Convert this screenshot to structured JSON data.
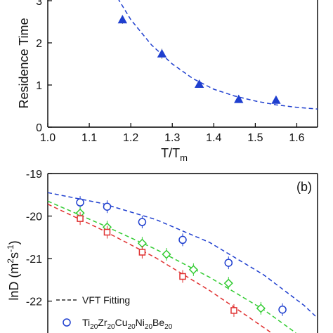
{
  "chart_data": [
    {
      "type": "scatter",
      "panel": "top",
      "ylabel": "Residence Time",
      "xlabel": "T/T",
      "xlabel_sub": "m",
      "xlim": [
        1.0,
        1.65
      ],
      "ylim": [
        0,
        3.3
      ],
      "x_ticks": [
        "1.0",
        "1.1",
        "1.2",
        "1.3",
        "1.4",
        "1.5",
        "1.6"
      ],
      "y_ticks": [
        "0",
        "1",
        "2",
        "3"
      ],
      "marker": "triangle-up",
      "color": "#1f3fcf",
      "points": [
        {
          "x": 1.18,
          "y": 2.55,
          "err": 0.1
        },
        {
          "x": 1.275,
          "y": 1.74,
          "err": 0.12
        },
        {
          "x": 1.365,
          "y": 1.02,
          "err": 0.07
        },
        {
          "x": 1.46,
          "y": 0.66,
          "err": 0.06
        },
        {
          "x": 1.55,
          "y": 0.64,
          "err": 0.05
        }
      ],
      "fit": {
        "style": "dashed",
        "color": "#1f3fcf",
        "curve": [
          [
            1.16,
            3.2
          ],
          [
            1.2,
            2.55
          ],
          [
            1.25,
            1.95
          ],
          [
            1.3,
            1.5
          ],
          [
            1.35,
            1.15
          ],
          [
            1.4,
            0.9
          ],
          [
            1.45,
            0.74
          ],
          [
            1.5,
            0.62
          ],
          [
            1.55,
            0.53
          ],
          [
            1.6,
            0.47
          ],
          [
            1.65,
            0.43
          ]
        ]
      }
    },
    {
      "type": "scatter",
      "panel": "bottom",
      "panel_label": "(b)",
      "ylabel": "lnD (m",
      "ylabel_sup1": "2",
      "ylabel_mid": "s",
      "ylabel_sup2": "-1",
      "ylabel_end": ")",
      "ylim": [
        -22.75,
        -19
      ],
      "y_ticks": [
        "-19",
        "-20",
        "-21",
        "-22"
      ],
      "legend": {
        "fit_label": "VFT Fitting",
        "series_label": {
          "base": "Ti",
          "parts": [
            {
              "t": "20",
              "sub": true
            },
            {
              "t": "Zr",
              "sub": false
            },
            {
              "t": "20",
              "sub": true
            },
            {
              "t": "Cu",
              "sub": false
            },
            {
              "t": "20",
              "sub": true
            },
            {
              "t": "Ni",
              "sub": false
            },
            {
              "t": "20",
              "sub": true
            },
            {
              "t": "Be",
              "sub": false
            },
            {
              "t": "20",
              "sub": true
            }
          ]
        }
      },
      "series": [
        {
          "marker": "circle",
          "color": "#1f3fcf",
          "points": [
            {
              "x": 0.12,
              "y": -19.68
            },
            {
              "x": 0.22,
              "y": -19.78
            },
            {
              "x": 0.35,
              "y": -20.14
            },
            {
              "x": 0.5,
              "y": -20.56
            },
            {
              "x": 0.67,
              "y": -21.1
            },
            {
              "x": 0.87,
              "y": -22.2
            }
          ],
          "fit": [
            [
              0.0,
              -19.45
            ],
            [
              0.2,
              -19.7
            ],
            [
              0.4,
              -20.08
            ],
            [
              0.6,
              -20.62
            ],
            [
              0.8,
              -21.38
            ],
            [
              0.95,
              -22.1
            ],
            [
              1.0,
              -22.4
            ]
          ]
        },
        {
          "marker": "diamond",
          "color": "#33cc33",
          "points": [
            {
              "x": 0.12,
              "y": -19.93
            },
            {
              "x": 0.22,
              "y": -20.26
            },
            {
              "x": 0.35,
              "y": -20.64
            },
            {
              "x": 0.44,
              "y": -20.9
            },
            {
              "x": 0.54,
              "y": -21.26
            },
            {
              "x": 0.67,
              "y": -21.58
            },
            {
              "x": 0.79,
              "y": -22.17
            }
          ],
          "fit": [
            [
              0.0,
              -19.65
            ],
            [
              0.2,
              -20.2
            ],
            [
              0.4,
              -20.78
            ],
            [
              0.6,
              -21.44
            ],
            [
              0.8,
              -22.2
            ],
            [
              0.92,
              -22.75
            ]
          ]
        },
        {
          "marker": "square",
          "color": "#e03030",
          "points": [
            {
              "x": 0.12,
              "y": -20.06
            },
            {
              "x": 0.22,
              "y": -20.38
            },
            {
              "x": 0.35,
              "y": -20.85
            },
            {
              "x": 0.5,
              "y": -21.42
            },
            {
              "x": 0.69,
              "y": -22.22
            }
          ],
          "fit": [
            [
              0.0,
              -19.72
            ],
            [
              0.2,
              -20.32
            ],
            [
              0.4,
              -20.98
            ],
            [
              0.6,
              -21.75
            ],
            [
              0.75,
              -22.4
            ],
            [
              0.83,
              -22.75
            ]
          ]
        }
      ]
    }
  ]
}
